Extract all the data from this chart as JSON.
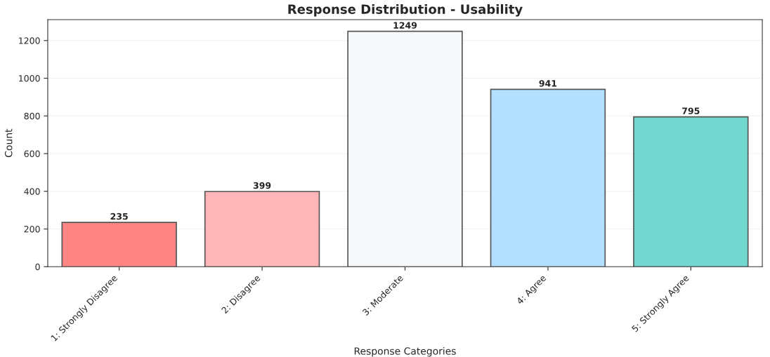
{
  "chart_data": {
    "type": "bar",
    "title": "Response Distribution - Usability",
    "xlabel": "Response Categories",
    "ylabel": "Count",
    "categories": [
      "1: Strongly Disagree",
      "2: Disagree",
      "3: Moderate",
      "4: Agree",
      "5: Strongly Agree"
    ],
    "values": [
      235,
      399,
      1249,
      941,
      795
    ],
    "colors": [
      "#ff8585",
      "#ffb6b8",
      "#f7f8fa",
      "#b3e0ff",
      "#72d7cf"
    ],
    "ylim": [
      0,
      1311
    ],
    "yticks": [
      0,
      200,
      400,
      600,
      800,
      1000,
      1200
    ],
    "grid": "y",
    "data_labels": true
  }
}
